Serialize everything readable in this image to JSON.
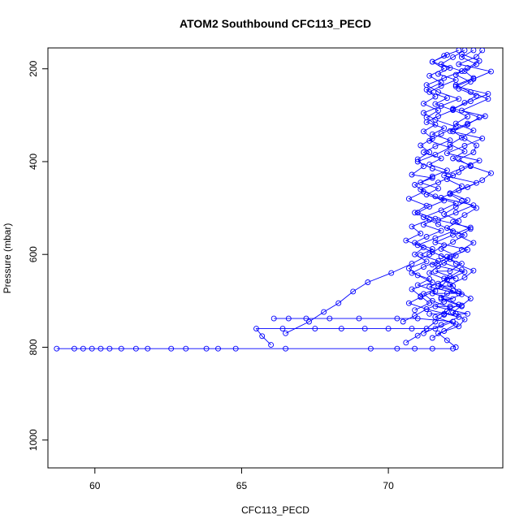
{
  "chart_data": {
    "type": "scatter",
    "title": "ATOM2 Southbound CFC113_PECD",
    "xlabel": "CFC113_PECD",
    "ylabel": "Pressure (mbar)",
    "xlim": [
      58.4,
      73.9
    ],
    "ylim": [
      1060,
      155
    ],
    "y_axis_inverted": true,
    "x_ticks": [
      60,
      65,
      70
    ],
    "y_ticks": [
      200,
      400,
      600,
      800,
      1000
    ],
    "grid": false,
    "legend": "none",
    "marker": "open-circle",
    "connected_lines": true,
    "color": "#0000ff",
    "series": [
      {
        "points": [
          [
            58.7,
            803
          ],
          [
            59.3,
            803
          ],
          [
            59.6,
            803
          ],
          [
            59.9,
            803
          ],
          [
            60.2,
            803
          ],
          [
            60.5,
            803
          ],
          [
            60.9,
            803
          ],
          [
            61.4,
            803
          ],
          [
            61.8,
            803
          ],
          [
            62.6,
            803
          ],
          [
            63.1,
            803
          ],
          [
            63.8,
            803
          ],
          [
            64.2,
            803
          ],
          [
            64.8,
            803
          ],
          [
            66.5,
            803
          ],
          [
            69.4,
            803
          ],
          [
            70.3,
            803
          ],
          [
            70.9,
            803
          ],
          [
            71.5,
            803
          ],
          [
            72.2,
            803
          ]
        ]
      },
      {
        "points": [
          [
            66.0,
            795
          ],
          [
            65.7,
            776
          ],
          [
            65.5,
            760
          ],
          [
            66.4,
            760
          ],
          [
            67.5,
            760
          ],
          [
            68.4,
            760
          ],
          [
            69.2,
            760
          ],
          [
            70.0,
            760
          ],
          [
            70.8,
            760
          ],
          [
            71.6,
            760
          ],
          [
            72.2,
            745
          ],
          [
            71.0,
            738
          ],
          [
            70.3,
            738
          ],
          [
            69.0,
            738
          ],
          [
            68.0,
            738
          ],
          [
            67.2,
            738
          ],
          [
            66.6,
            738
          ],
          [
            66.1,
            738
          ]
        ]
      },
      {
        "points": [
          [
            66.5,
            770
          ],
          [
            67.3,
            745
          ],
          [
            67.8,
            724
          ],
          [
            68.3,
            705
          ],
          [
            68.8,
            680
          ],
          [
            69.3,
            660
          ],
          [
            70.1,
            640
          ],
          [
            70.8,
            620
          ],
          [
            71.4,
            600
          ],
          [
            71.9,
            580
          ]
        ]
      },
      {
        "points": [
          [
            70.6,
            790
          ],
          [
            71.0,
            775
          ],
          [
            71.3,
            760
          ],
          [
            71.6,
            745
          ],
          [
            71.9,
            730
          ],
          [
            72.1,
            715
          ],
          [
            71.5,
            700
          ],
          [
            71.2,
            685
          ],
          [
            71.8,
            670
          ],
          [
            72.0,
            655
          ],
          [
            71.4,
            640
          ],
          [
            71.7,
            625
          ],
          [
            72.1,
            610
          ],
          [
            71.5,
            595
          ],
          [
            71.0,
            580
          ],
          [
            71.6,
            565
          ],
          [
            72.2,
            550
          ],
          [
            71.7,
            535
          ],
          [
            71.2,
            520
          ],
          [
            71.8,
            505
          ],
          [
            72.3,
            490
          ],
          [
            71.6,
            475
          ],
          [
            71.1,
            460
          ],
          [
            71.7,
            445
          ],
          [
            72.2,
            430
          ],
          [
            71.5,
            415
          ],
          [
            71.0,
            400
          ],
          [
            71.6,
            385
          ],
          [
            72.1,
            370
          ],
          [
            71.4,
            355
          ],
          [
            71.8,
            340
          ],
          [
            72.3,
            325
          ],
          [
            71.6,
            310
          ],
          [
            71.2,
            295
          ],
          [
            71.8,
            280
          ],
          [
            72.4,
            265
          ],
          [
            71.7,
            250
          ],
          [
            71.3,
            235
          ],
          [
            71.9,
            220
          ],
          [
            72.5,
            205
          ],
          [
            71.8,
            190
          ],
          [
            72.2,
            175
          ],
          [
            72.6,
            160
          ]
        ]
      },
      {
        "points": [
          [
            72.3,
            800
          ],
          [
            72.0,
            785
          ],
          [
            71.7,
            770
          ],
          [
            72.4,
            755
          ],
          [
            72.6,
            740
          ],
          [
            72.2,
            725
          ],
          [
            72.5,
            710
          ],
          [
            72.8,
            695
          ],
          [
            72.4,
            680
          ],
          [
            72.1,
            665
          ],
          [
            72.6,
            650
          ],
          [
            72.9,
            635
          ],
          [
            72.3,
            620
          ],
          [
            72.0,
            605
          ],
          [
            72.5,
            590
          ],
          [
            72.9,
            575
          ],
          [
            72.4,
            560
          ],
          [
            72.8,
            545
          ],
          [
            72.2,
            530
          ],
          [
            72.6,
            515
          ],
          [
            73.0,
            500
          ],
          [
            72.5,
            485
          ],
          [
            72.1,
            470
          ],
          [
            72.7,
            455
          ],
          [
            73.2,
            440
          ],
          [
            73.5,
            425
          ],
          [
            72.8,
            410
          ],
          [
            72.4,
            395
          ],
          [
            72.9,
            380
          ],
          [
            73.0,
            365
          ],
          [
            72.6,
            350
          ],
          [
            72.2,
            335
          ],
          [
            72.7,
            320
          ],
          [
            73.1,
            305
          ],
          [
            72.5,
            290
          ],
          [
            73.4,
            265
          ],
          [
            72.8,
            250
          ],
          [
            72.3,
            235
          ],
          [
            72.9,
            220
          ],
          [
            72.6,
            205
          ],
          [
            73.0,
            190
          ],
          [
            72.5,
            175
          ],
          [
            72.9,
            160
          ]
        ]
      },
      {
        "points": [
          [
            70.9,
            720
          ],
          [
            71.4,
            705
          ],
          [
            71.1,
            690
          ],
          [
            70.8,
            675
          ],
          [
            71.5,
            660
          ],
          [
            71.0,
            645
          ],
          [
            70.7,
            630
          ],
          [
            71.3,
            615
          ],
          [
            70.9,
            600
          ],
          [
            71.2,
            585
          ],
          [
            70.6,
            570
          ],
          [
            71.1,
            555
          ],
          [
            70.8,
            540
          ],
          [
            71.4,
            525
          ],
          [
            70.9,
            510
          ],
          [
            71.3,
            495
          ],
          [
            70.7,
            480
          ],
          [
            71.2,
            465
          ],
          [
            70.9,
            450
          ],
          [
            71.5,
            435
          ],
          [
            70.8,
            428
          ],
          [
            71.2,
            410
          ],
          [
            71.0,
            395
          ],
          [
            71.4,
            380
          ],
          [
            71.1,
            365
          ],
          [
            71.5,
            350
          ],
          [
            71.2,
            335
          ],
          [
            71.6,
            320
          ],
          [
            71.3,
            305
          ],
          [
            71.7,
            290
          ],
          [
            71.2,
            275
          ],
          [
            71.6,
            260
          ],
          [
            71.3,
            245
          ],
          [
            71.8,
            230
          ],
          [
            71.4,
            215
          ],
          [
            71.9,
            200
          ],
          [
            71.5,
            185
          ],
          [
            72.0,
            170
          ]
        ]
      },
      {
        "points": [
          [
            71.5,
            780
          ],
          [
            71.9,
            765
          ],
          [
            72.3,
            750
          ],
          [
            71.6,
            735
          ],
          [
            72.0,
            722
          ],
          [
            72.4,
            708
          ],
          [
            71.8,
            693
          ],
          [
            72.2,
            678
          ],
          [
            71.7,
            663
          ],
          [
            72.1,
            648
          ],
          [
            72.5,
            633
          ],
          [
            71.9,
            618
          ],
          [
            72.3,
            603
          ],
          [
            71.8,
            588
          ],
          [
            72.2,
            573
          ],
          [
            72.6,
            558
          ],
          [
            72.0,
            543
          ],
          [
            72.4,
            528
          ],
          [
            71.9,
            513
          ],
          [
            72.3,
            498
          ],
          [
            72.7,
            483
          ],
          [
            72.1,
            468
          ],
          [
            72.5,
            453
          ],
          [
            72.0,
            438
          ],
          [
            72.4,
            423
          ],
          [
            72.8,
            408
          ],
          [
            72.2,
            393
          ],
          [
            72.6,
            378
          ],
          [
            72.1,
            363
          ],
          [
            72.5,
            348
          ],
          [
            72.9,
            333
          ],
          [
            72.3,
            318
          ],
          [
            72.7,
            303
          ],
          [
            72.2,
            288
          ],
          [
            72.6,
            273
          ],
          [
            73.0,
            258
          ],
          [
            72.4,
            243
          ],
          [
            72.8,
            228
          ],
          [
            72.3,
            213
          ],
          [
            72.7,
            198
          ],
          [
            73.1,
            183
          ],
          [
            72.5,
            168
          ]
        ]
      },
      {
        "points": [
          [
            71.2,
            770
          ],
          [
            71.8,
            752
          ],
          [
            72.4,
            735
          ],
          [
            71.3,
            718
          ],
          [
            71.9,
            702
          ],
          [
            72.5,
            686
          ],
          [
            71.4,
            670
          ],
          [
            72.0,
            654
          ],
          [
            72.6,
            638
          ],
          [
            71.5,
            622
          ],
          [
            72.1,
            606
          ],
          [
            72.7,
            590
          ],
          [
            71.6,
            574
          ],
          [
            72.2,
            558
          ],
          [
            72.8,
            542
          ],
          [
            71.7,
            526
          ],
          [
            72.3,
            510
          ],
          [
            72.9,
            494
          ],
          [
            71.8,
            478
          ],
          [
            72.4,
            462
          ],
          [
            73.0,
            446
          ],
          [
            71.9,
            430
          ],
          [
            72.5,
            414
          ],
          [
            73.1,
            398
          ],
          [
            72.0,
            382
          ],
          [
            72.6,
            366
          ],
          [
            73.2,
            350
          ],
          [
            72.1,
            334
          ],
          [
            72.7,
            318
          ],
          [
            73.3,
            302
          ],
          [
            72.2,
            286
          ],
          [
            72.8,
            270
          ],
          [
            73.4,
            254
          ],
          [
            72.3,
            238
          ],
          [
            72.9,
            222
          ],
          [
            73.5,
            206
          ],
          [
            72.4,
            190
          ],
          [
            73.0,
            174
          ],
          [
            73.2,
            160
          ]
        ]
      },
      {
        "points": [
          [
            70.5,
            745
          ],
          [
            70.9,
            732
          ],
          [
            71.3,
            718
          ],
          [
            70.7,
            705
          ],
          [
            71.1,
            692
          ],
          [
            71.6,
            679
          ],
          [
            71.0,
            666
          ],
          [
            71.4,
            653
          ],
          [
            70.8,
            640
          ],
          [
            71.2,
            627
          ],
          [
            71.7,
            614
          ],
          [
            71.1,
            601
          ],
          [
            71.5,
            588
          ],
          [
            70.9,
            575
          ],
          [
            71.3,
            562
          ],
          [
            71.8,
            549
          ],
          [
            71.2,
            536
          ],
          [
            71.6,
            523
          ],
          [
            71.0,
            510
          ],
          [
            71.4,
            497
          ],
          [
            71.9,
            484
          ],
          [
            71.3,
            471
          ],
          [
            71.7,
            458
          ],
          [
            71.1,
            445
          ],
          [
            71.5,
            432
          ],
          [
            72.0,
            419
          ],
          [
            71.4,
            406
          ],
          [
            71.8,
            393
          ],
          [
            71.2,
            380
          ],
          [
            71.6,
            367
          ],
          [
            72.1,
            354
          ],
          [
            71.5,
            341
          ],
          [
            71.9,
            328
          ],
          [
            71.3,
            315
          ],
          [
            71.7,
            302
          ],
          [
            72.2,
            289
          ],
          [
            71.6,
            276
          ],
          [
            72.0,
            263
          ],
          [
            71.4,
            250
          ],
          [
            71.8,
            237
          ],
          [
            72.3,
            224
          ],
          [
            71.7,
            211
          ],
          [
            72.1,
            198
          ],
          [
            71.5,
            185
          ],
          [
            71.9,
            172
          ],
          [
            72.4,
            160
          ]
        ]
      },
      {
        "points": [
          [
            71.4,
            728
          ],
          [
            71.9,
            728
          ],
          [
            72.3,
            728
          ],
          [
            72.7,
            728
          ],
          [
            71.6,
            712
          ],
          [
            72.1,
            712
          ],
          [
            72.5,
            712
          ],
          [
            71.8,
            696
          ],
          [
            72.2,
            696
          ],
          [
            71.5,
            684
          ],
          [
            72.0,
            684
          ],
          [
            72.4,
            684
          ],
          [
            71.7,
            668
          ],
          [
            72.2,
            668
          ],
          [
            71.9,
            652
          ],
          [
            72.3,
            652
          ],
          [
            71.6,
            636
          ],
          [
            72.1,
            636
          ],
          [
            72.5,
            620
          ],
          [
            71.8,
            604
          ]
        ]
      }
    ]
  }
}
